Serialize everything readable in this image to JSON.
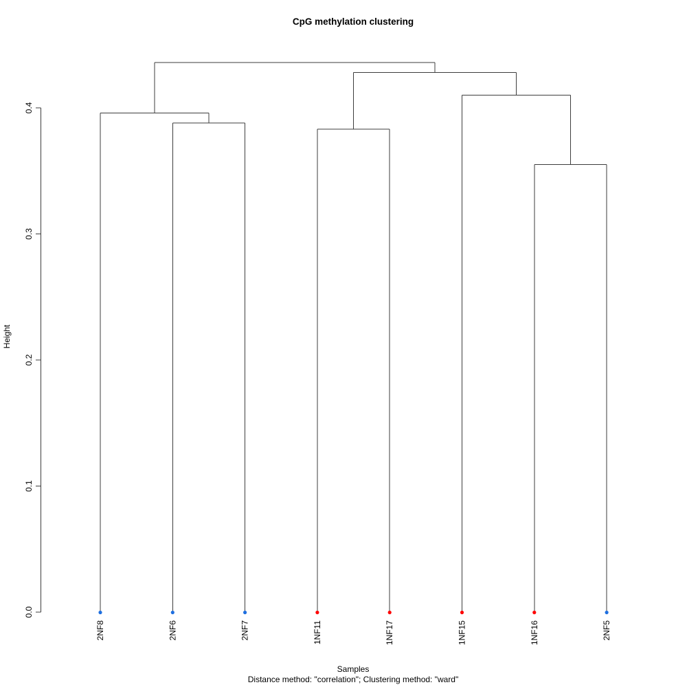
{
  "title": "CpG methylation clustering",
  "axes": {
    "y_label": "Height",
    "x_label": "Samples",
    "subtitle": "Distance method: \"correlation\"; Clustering method: \"ward\"",
    "y_tick_labels": [
      "0.0",
      "0.1",
      "0.2",
      "0.3",
      "0.4"
    ]
  },
  "colors": {
    "leaf_blue": "#1E6FE0",
    "leaf_red": "#FF0000",
    "line": "#3C3C3C",
    "text": "#000000"
  },
  "chart_data": {
    "type": "dendrogram",
    "title": "CpG methylation clustering",
    "xlabel": "Samples",
    "ylabel": "Height",
    "subtitle": "Distance method: \"correlation\"; Clustering method: \"ward\"",
    "distance_method": "correlation",
    "clustering_method": "ward",
    "ylim": [
      0.0,
      0.44
    ],
    "y_ticks": [
      0.0,
      0.1,
      0.2,
      0.3,
      0.4
    ],
    "leaf_order": [
      "2NF8",
      "2NF6",
      "2NF7",
      "1NF11",
      "1NF17",
      "1NF15",
      "1NF16",
      "2NF5"
    ],
    "leaf_color_groups": {
      "blue": [
        "2NF8",
        "2NF6",
        "2NF7",
        "2NF5"
      ],
      "red": [
        "1NF11",
        "1NF17",
        "1NF15",
        "1NF16"
      ]
    },
    "tree": {
      "height": 0.436,
      "children": [
        {
          "height": 0.396,
          "children": [
            {
              "leaf": "2NF8",
              "color": "blue"
            },
            {
              "height": 0.388,
              "children": [
                {
                  "leaf": "2NF6",
                  "color": "blue"
                },
                {
                  "leaf": "2NF7",
                  "color": "blue"
                }
              ]
            }
          ]
        },
        {
          "height": 0.428,
          "children": [
            {
              "height": 0.383,
              "children": [
                {
                  "leaf": "1NF11",
                  "color": "red"
                },
                {
                  "leaf": "1NF17",
                  "color": "red"
                }
              ]
            },
            {
              "height": 0.41,
              "children": [
                {
                  "leaf": "1NF15",
                  "color": "red"
                },
                {
                  "height": 0.355,
                  "children": [
                    {
                      "leaf": "1NF16",
                      "color": "red"
                    },
                    {
                      "leaf": "2NF5",
                      "color": "blue"
                    }
                  ]
                }
              ]
            }
          ]
        }
      ]
    }
  }
}
